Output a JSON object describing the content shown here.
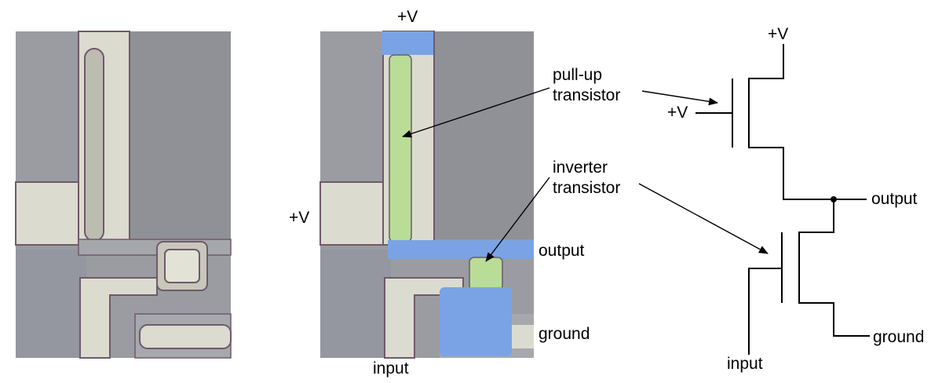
{
  "colors": {
    "die_background": "#9a9ca1",
    "metal": "#dcdbcf",
    "metal_edge": "#6e5a6a",
    "dark_region": "#8d8f95",
    "highlight_green": "#b9dd96",
    "highlight_blue": "#7aa3e6",
    "wire": "#000000"
  },
  "labels": {
    "middle_top_vplus": "+V",
    "middle_left_vplus": "+V",
    "middle_output": "output",
    "middle_ground": "ground",
    "middle_input": "input",
    "pullup_line1": "pull-up",
    "pullup_line2": "transistor",
    "inverter_line1": "inverter",
    "inverter_line2": "transistor",
    "schematic_top_vplus": "+V",
    "schematic_gate_vplus": "+V",
    "schematic_output": "output",
    "schematic_ground": "ground",
    "schematic_input": "input"
  }
}
